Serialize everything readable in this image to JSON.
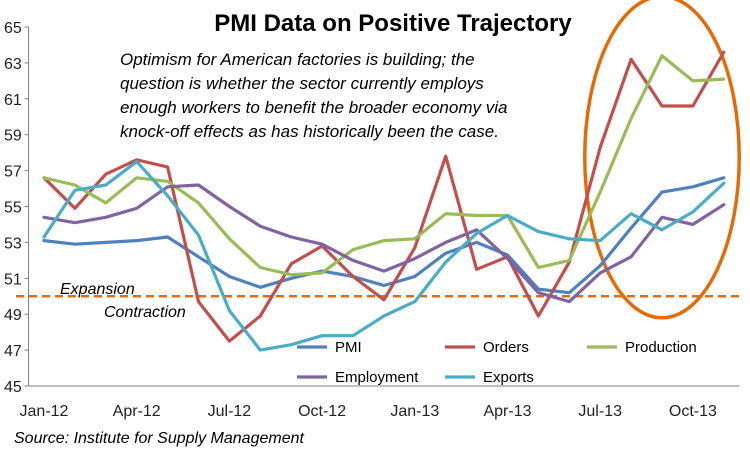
{
  "chart_data": {
    "type": "line",
    "title": "PMI Data on Positive Trajectory",
    "annotation": [
      "Optimism for American factories is building; the",
      "question is whether the sector currently employs",
      "enough workers to benefit the broader economy via",
      "knock-off effects as has historically been the case."
    ],
    "source": "Source: Institute for Supply Management",
    "x_count": 23,
    "x_tick_labels": [
      {
        "index": 0,
        "label": "Jan-12"
      },
      {
        "index": 3,
        "label": "Apr-12"
      },
      {
        "index": 6,
        "label": "Jul-12"
      },
      {
        "index": 9,
        "label": "Oct-12"
      },
      {
        "index": 12,
        "label": "Jan-13"
      },
      {
        "index": 15,
        "label": "Apr-13"
      },
      {
        "index": 18,
        "label": "Jul-13"
      },
      {
        "index": 21,
        "label": "Oct-13"
      }
    ],
    "ylim": [
      45,
      65
    ],
    "yticks": [
      45,
      47,
      49,
      51,
      53,
      55,
      57,
      59,
      61,
      63,
      65
    ],
    "grid": false,
    "threshold": {
      "value": 50,
      "label_above": "Expansion",
      "label_below": "Contraction",
      "color": "#E36C09"
    },
    "highlight": {
      "shape": "ellipse",
      "x_range": [
        17.5,
        22.5
      ],
      "y_range": [
        48.8,
        66.7
      ],
      "color": "#E36C09"
    },
    "series": [
      {
        "name": "PMI",
        "color": "#4F81BD",
        "values": [
          53.1,
          52.9,
          53.0,
          53.1,
          53.3,
          52.2,
          51.1,
          50.5,
          51.0,
          51.4,
          51.1,
          50.6,
          51.1,
          52.4,
          53.0,
          52.3,
          50.4,
          50.2,
          51.7,
          53.8,
          55.8,
          56.1,
          56.6
        ]
      },
      {
        "name": "Orders",
        "color": "#C0504D",
        "values": [
          56.6,
          54.9,
          56.8,
          57.6,
          57.2,
          49.7,
          47.5,
          48.9,
          51.8,
          52.8,
          51.1,
          49.8,
          52.7,
          57.8,
          51.5,
          52.2,
          48.9,
          51.9,
          58.3,
          63.2,
          60.6,
          60.6,
          63.6
        ]
      },
      {
        "name": "Production",
        "color": "#9BBB59",
        "values": [
          56.6,
          56.2,
          55.2,
          56.6,
          56.4,
          55.2,
          53.2,
          51.6,
          51.2,
          51.3,
          52.6,
          53.1,
          53.2,
          54.6,
          54.5,
          54.5,
          51.6,
          52.0,
          55.8,
          59.9,
          63.4,
          62.0,
          62.1
        ]
      },
      {
        "name": "Employment",
        "color": "#8064A2",
        "values": [
          54.4,
          54.1,
          54.4,
          54.9,
          56.1,
          56.2,
          55.0,
          53.9,
          53.3,
          52.9,
          52.0,
          51.4,
          52.1,
          53.0,
          53.7,
          52.1,
          50.2,
          49.7,
          51.3,
          52.2,
          54.4,
          54.0,
          55.1
        ]
      },
      {
        "name": "Exports",
        "color": "#4BACC6",
        "values": [
          53.3,
          55.9,
          56.2,
          57.5,
          55.6,
          53.4,
          49.2,
          47.0,
          47.3,
          47.8,
          47.8,
          48.9,
          49.7,
          51.9,
          53.5,
          54.5,
          53.6,
          53.2,
          53.1,
          54.6,
          53.7,
          54.7,
          56.3
        ]
      }
    ]
  }
}
